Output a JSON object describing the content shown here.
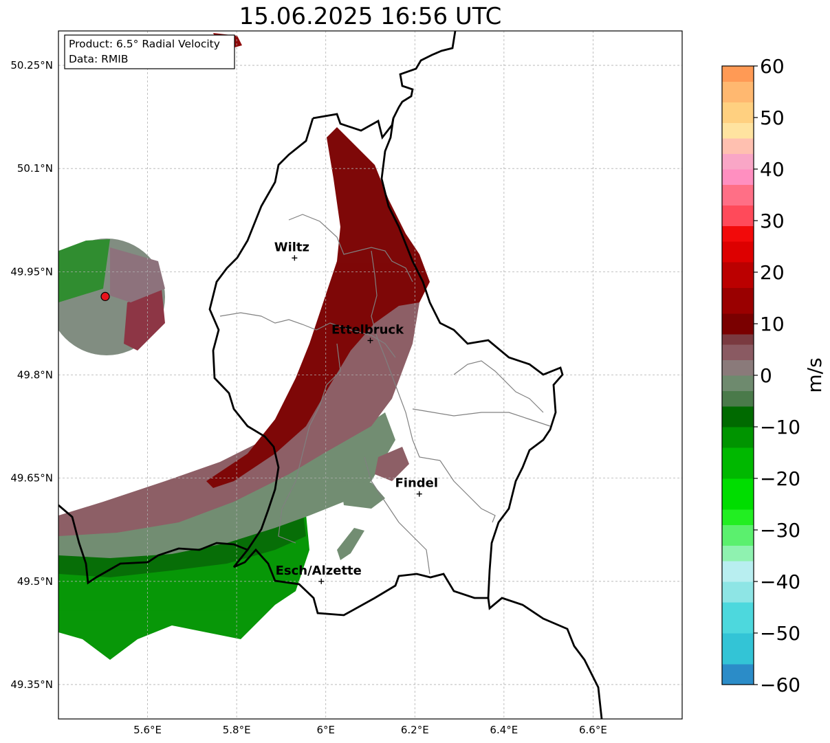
{
  "title": "15.06.2025 16:56 UTC",
  "info_box": {
    "line1": "Product: 6.5° Radial Velocity",
    "line2": "Data: RMIB"
  },
  "map": {
    "lon_range": [
      5.4,
      6.8
    ],
    "lat_range": [
      49.3,
      50.3
    ],
    "x_ticks": [
      {
        "value": 5.6,
        "label": "5.6°E"
      },
      {
        "value": 5.8,
        "label": "5.8°E"
      },
      {
        "value": 6.0,
        "label": "6°E"
      },
      {
        "value": 6.2,
        "label": "6.2°E"
      },
      {
        "value": 6.4,
        "label": "6.4°E"
      },
      {
        "value": 6.6,
        "label": "6.6°E"
      }
    ],
    "y_ticks": [
      {
        "value": 50.25,
        "label": "50.25°N"
      },
      {
        "value": 50.1,
        "label": "50.1°N"
      },
      {
        "value": 49.95,
        "label": "49.95°N"
      },
      {
        "value": 49.8,
        "label": "49.8°N"
      },
      {
        "value": 49.65,
        "label": "49.65°N"
      },
      {
        "value": 49.5,
        "label": "49.5°N"
      },
      {
        "value": 49.35,
        "label": "49.35°N"
      }
    ],
    "grid": true,
    "cities": [
      {
        "name": "Wiltz",
        "lon": 5.93,
        "lat": 49.97
      },
      {
        "name": "Ettelbruck",
        "lon": 6.1,
        "lat": 49.85
      },
      {
        "name": "Findel",
        "lon": 6.21,
        "lat": 49.627
      },
      {
        "name": "Esch/Alzette",
        "lon": 5.99,
        "lat": 49.5
      }
    ],
    "radar_site": {
      "lon": 5.505,
      "lat": 49.914,
      "color": "#e8141c"
    }
  },
  "colorbar": {
    "unit": "m/s",
    "range": [
      -60,
      60
    ],
    "ticks": [
      {
        "value": 60,
        "label": "60"
      },
      {
        "value": 50,
        "label": "50"
      },
      {
        "value": 40,
        "label": "40"
      },
      {
        "value": 30,
        "label": "30"
      },
      {
        "value": 20,
        "label": "20"
      },
      {
        "value": 10,
        "label": "10"
      },
      {
        "value": 0,
        "label": "0"
      },
      {
        "value": -10,
        "label": "−10"
      },
      {
        "value": -20,
        "label": "−20"
      },
      {
        "value": -30,
        "label": "−30"
      },
      {
        "value": -40,
        "label": "−40"
      },
      {
        "value": -50,
        "label": "−50"
      },
      {
        "value": -60,
        "label": "−60"
      }
    ],
    "bands": [
      {
        "from": -60,
        "to": -56,
        "color": "#2b8cc8"
      },
      {
        "from": -56,
        "to": -50,
        "color": "#33c4d6"
      },
      {
        "from": -50,
        "to": -44,
        "color": "#4dd8dd"
      },
      {
        "from": -44,
        "to": -40,
        "color": "#8ee5e5"
      },
      {
        "from": -40,
        "to": -36,
        "color": "#b8eef0"
      },
      {
        "from": -36,
        "to": -33,
        "color": "#8ff2b0"
      },
      {
        "from": -33,
        "to": -29,
        "color": "#5bf06e"
      },
      {
        "from": -29,
        "to": -26,
        "color": "#22ee22"
      },
      {
        "from": -26,
        "to": -20,
        "color": "#00dd00"
      },
      {
        "from": -20,
        "to": -14,
        "color": "#00b800"
      },
      {
        "from": -14,
        "to": -10,
        "color": "#009400"
      },
      {
        "from": -10,
        "to": -6,
        "color": "#006a00"
      },
      {
        "from": -6,
        "to": -3,
        "color": "#4a7a4a"
      },
      {
        "from": -3,
        "to": 0,
        "color": "#6e8a6e"
      },
      {
        "from": 0,
        "to": 3,
        "color": "#8a7a7a"
      },
      {
        "from": 3,
        "to": 6,
        "color": "#8a5a62"
      },
      {
        "from": 6,
        "to": 8,
        "color": "#7a3a40"
      },
      {
        "from": 8,
        "to": 12,
        "color": "#7a0000"
      },
      {
        "from": 12,
        "to": 17,
        "color": "#9a0000"
      },
      {
        "from": 17,
        "to": 22,
        "color": "#bb0000"
      },
      {
        "from": 22,
        "to": 26,
        "color": "#dd0000"
      },
      {
        "from": 26,
        "to": 29,
        "color": "#f20a0a"
      },
      {
        "from": 29,
        "to": 33,
        "color": "#ff4a5a"
      },
      {
        "from": 33,
        "to": 37,
        "color": "#ff6f86"
      },
      {
        "from": 37,
        "to": 40,
        "color": "#ff8fc0"
      },
      {
        "from": 40,
        "to": 43,
        "color": "#f9a6c6"
      },
      {
        "from": 43,
        "to": 46,
        "color": "#ffc0b0"
      },
      {
        "from": 46,
        "to": 49,
        "color": "#ffe3a0"
      },
      {
        "from": 49,
        "to": 53,
        "color": "#ffd080"
      },
      {
        "from": 53,
        "to": 57,
        "color": "#ffb870"
      },
      {
        "from": 57,
        "to": 60,
        "color": "#ff9a55"
      }
    ]
  }
}
